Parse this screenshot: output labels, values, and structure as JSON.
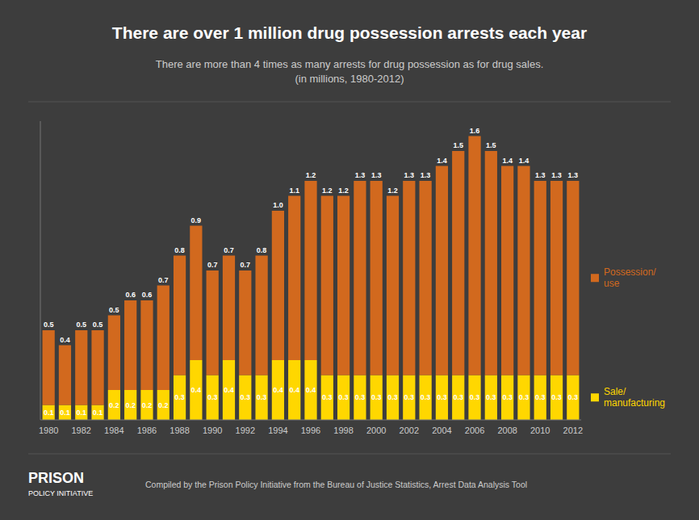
{
  "chart_data": {
    "type": "bar",
    "stacked": true,
    "title": "There are over 1 million drug possession arrests each year",
    "subtitle": "There are more than 4 times as many arrests for drug possession as for drug sales.\n(in millions, 1980-2012)",
    "annotations": [
      "PRISON",
      "POLICY INITIATIVE",
      "Compiled by the Prison Policy Initiative from the Bureau of Justice Statistics, Arrest Data Analysis Tool"
    ],
    "categories": [
      "1980",
      null,
      "1982",
      null,
      "1984",
      null,
      "1986",
      null,
      "1988",
      null,
      "1990",
      null,
      "1992",
      null,
      "1994",
      null,
      "1996",
      null,
      "1998",
      null,
      "2000",
      null,
      "2002",
      null,
      "2004",
      null,
      "2006",
      null,
      "2008",
      null,
      "2010",
      null,
      "2012"
    ],
    "series": [
      {
        "name": "Sale/\nmanufacturing",
        "color": "#FFD700",
        "values": [
          0.1,
          0.1,
          0.1,
          0.1,
          0.2,
          0.2,
          0.2,
          0.2,
          0.3,
          0.4,
          0.3,
          0.4,
          0.3,
          0.3,
          0.4,
          0.4,
          0.4,
          0.3,
          0.3,
          0.3,
          0.3,
          0.3,
          0.3,
          0.3,
          0.3,
          0.3,
          0.3,
          0.3,
          0.3,
          0.3,
          0.3,
          0.3,
          0.3
        ]
      },
      {
        "name": "Possession/\nuse",
        "color": "#D2691E",
        "values": [
          0.5,
          0.4,
          0.5,
          0.5,
          0.5,
          0.6,
          0.6,
          0.7,
          0.8,
          0.9,
          0.7,
          0.7,
          0.7,
          0.8,
          1.0,
          1.1,
          1.2,
          1.2,
          1.2,
          1.3,
          1.3,
          1.2,
          1.3,
          1.3,
          1.4,
          1.5,
          1.6,
          1.5,
          1.4,
          1.4,
          1.3,
          1.3,
          1.3
        ],
        "value_labels": [
          "0.5",
          "0.4",
          "0.5",
          "0.5",
          "0.5",
          "0.6",
          "0.6",
          "0.7",
          "0.8",
          "0.9",
          "0.7",
          "0.7",
          "0.7",
          "0.8",
          "1.0",
          "1.1",
          "1.2",
          "1.2",
          "1.2",
          "1.3",
          "1.3",
          "1.2",
          "1.3",
          "1.3",
          "1.4",
          "1.5",
          "1.6",
          "1.5",
          "1.4",
          "1.4",
          "1.3",
          "1.3",
          "1.3"
        ]
      }
    ],
    "ylim": [
      0,
      2.0
    ],
    "yticks": [],
    "tick_labels": "x",
    "grid": false,
    "legend": "right",
    "data_labels": true
  }
}
